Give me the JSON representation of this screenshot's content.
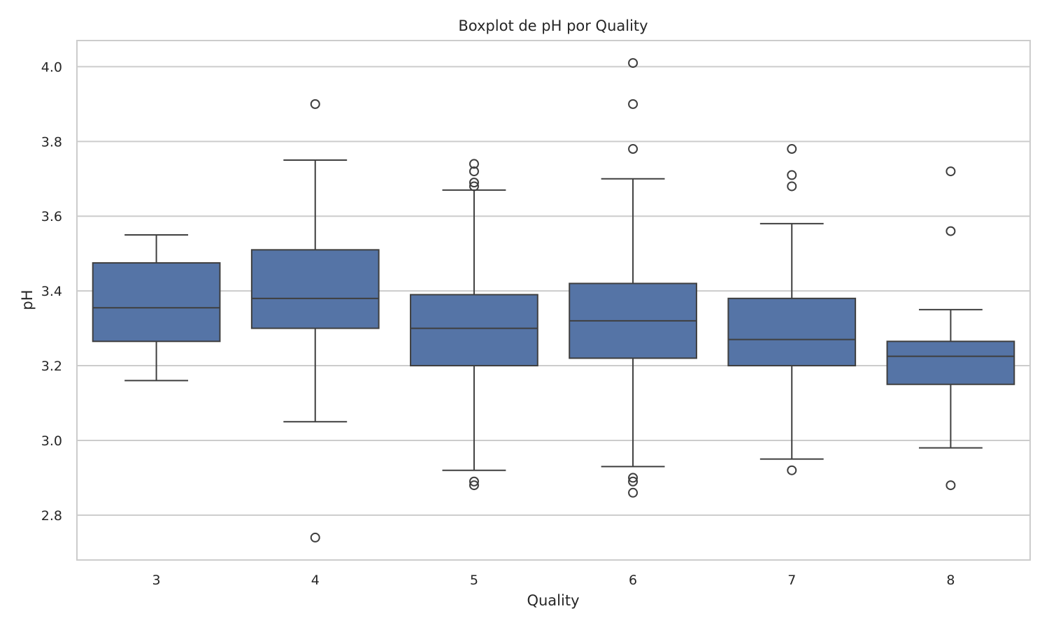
{
  "chart_data": {
    "type": "box",
    "title": "Boxplot de pH por Quality",
    "xlabel": "Quality",
    "ylabel": "pH",
    "ylim": [
      2.68,
      4.07
    ],
    "yticks": [
      "2.8",
      "3.0",
      "3.2",
      "3.4",
      "3.6",
      "3.8",
      "4.0"
    ],
    "grid": "horizontal",
    "box_color": "#5574a6",
    "edge_color": "#3f3f3f",
    "categories": [
      "3",
      "4",
      "5",
      "6",
      "7",
      "8"
    ],
    "boxes": [
      {
        "category": "3",
        "whisker_low": 3.16,
        "q1": 3.265,
        "median": 3.355,
        "q3": 3.475,
        "whisker_high": 3.55,
        "outliers": []
      },
      {
        "category": "4",
        "whisker_low": 3.05,
        "q1": 3.3,
        "median": 3.38,
        "q3": 3.51,
        "whisker_high": 3.75,
        "outliers": [
          3.9,
          2.74
        ]
      },
      {
        "category": "5",
        "whisker_low": 2.92,
        "q1": 3.2,
        "median": 3.3,
        "q3": 3.39,
        "whisker_high": 3.67,
        "outliers": [
          3.74,
          3.72,
          3.69,
          3.68,
          2.89,
          2.88
        ]
      },
      {
        "category": "6",
        "whisker_low": 2.93,
        "q1": 3.22,
        "median": 3.32,
        "q3": 3.42,
        "whisker_high": 3.7,
        "outliers": [
          4.01,
          3.9,
          3.78,
          2.9,
          2.89,
          2.86
        ]
      },
      {
        "category": "7",
        "whisker_low": 2.95,
        "q1": 3.2,
        "median": 3.27,
        "q3": 3.38,
        "whisker_high": 3.58,
        "outliers": [
          3.78,
          3.71,
          3.68,
          2.92
        ]
      },
      {
        "category": "8",
        "whisker_low": 2.98,
        "q1": 3.15,
        "median": 3.225,
        "q3": 3.265,
        "whisker_high": 3.35,
        "outliers": [
          3.72,
          3.56,
          2.88
        ]
      }
    ]
  }
}
